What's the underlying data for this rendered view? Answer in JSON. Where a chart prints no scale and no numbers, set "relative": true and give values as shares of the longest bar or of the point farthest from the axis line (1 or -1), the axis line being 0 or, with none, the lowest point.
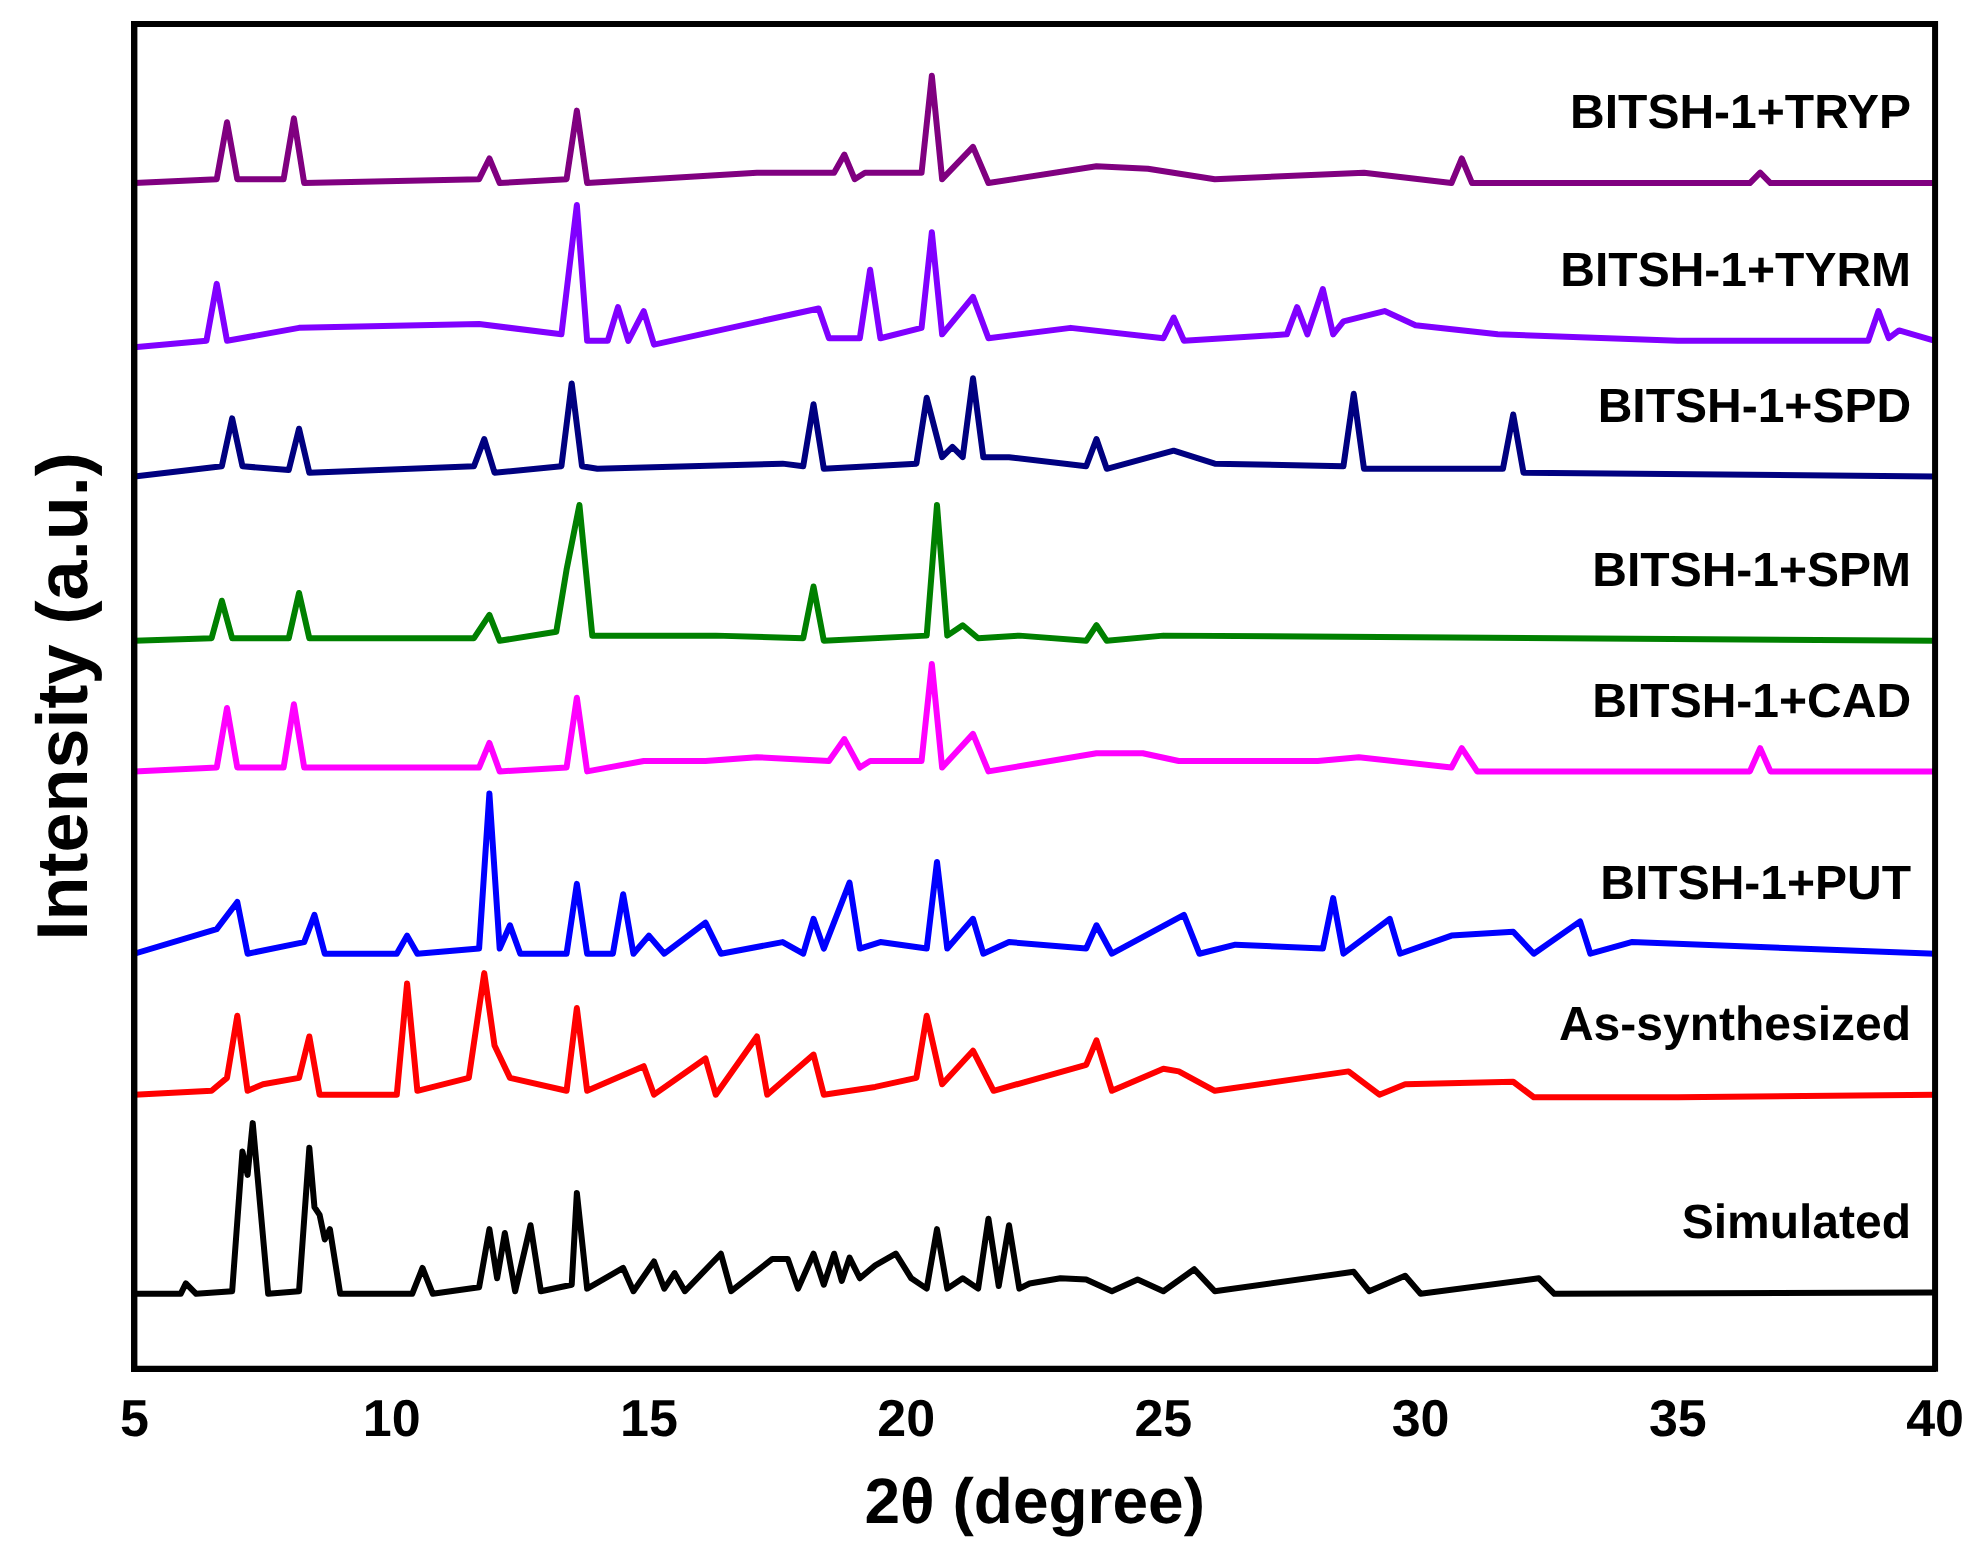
{
  "chart_data": {
    "type": "line",
    "relative": true,
    "xlabel": "2θ (degree)",
    "ylabel": "Intensity (a.u.)",
    "xlim": [
      5,
      40
    ],
    "xticks": [
      5,
      10,
      15,
      20,
      25,
      30,
      35,
      40
    ],
    "tick_labels": "x",
    "grid": false,
    "series": [
      {
        "name": "BITSH-1+TRYP",
        "color": "#800080",
        "x": [
          5,
          6.6,
          6.8,
          7.0,
          7.9,
          8.1,
          8.3,
          11.7,
          11.9,
          12.1,
          13.4,
          13.6,
          13.8,
          17.1,
          18.6,
          18.8,
          19.0,
          19.2,
          20.3,
          20.5,
          20.7,
          21.3,
          21.6,
          23.7,
          24.7,
          26.0,
          28.9,
          30.6,
          30.8,
          31.0,
          36.4,
          36.6,
          36.8,
          40
        ],
        "values": [
          0.917,
          0.92,
          0.964,
          0.92,
          0.92,
          0.967,
          0.917,
          0.92,
          0.936,
          0.917,
          0.92,
          0.973,
          0.917,
          0.925,
          0.925,
          0.939,
          0.92,
          0.925,
          0.925,
          1,
          0.92,
          0.945,
          0.917,
          0.93,
          0.928,
          0.92,
          0.925,
          0.917,
          0.936,
          0.917,
          0.917,
          0.925,
          0.917,
          0.917
        ]
      },
      {
        "name": "BITSH-1+TYRM",
        "color": "#8000ff",
        "x": [
          5,
          6.4,
          6.6,
          6.8,
          8.2,
          11.7,
          13.3,
          13.6,
          13.8,
          14.2,
          14.4,
          14.6,
          14.9,
          15.1,
          18.3,
          18.5,
          19.1,
          19.3,
          19.5,
          20.3,
          20.5,
          20.7,
          21.3,
          21.6,
          23.2,
          25.0,
          25.2,
          25.4,
          27.4,
          27.6,
          27.8,
          28.1,
          28.3,
          28.5,
          29.3,
          29.9,
          31.5,
          35,
          38.7,
          38.9,
          39.1,
          39.3,
          40
        ],
        "values": [
          0.79,
          0.795,
          0.839,
          0.795,
          0.805,
          0.808,
          0.8,
          0.9,
          0.795,
          0.795,
          0.821,
          0.795,
          0.818,
          0.792,
          0.82,
          0.797,
          0.797,
          0.85,
          0.797,
          0.805,
          0.879,
          0.8,
          0.829,
          0.797,
          0.805,
          0.797,
          0.813,
          0.795,
          0.8,
          0.821,
          0.8,
          0.835,
          0.8,
          0.81,
          0.818,
          0.807,
          0.8,
          0.795,
          0.795,
          0.818,
          0.797,
          0.803,
          0.795
        ]
      },
      {
        "name": "BITSH-1+SPD",
        "color": "#000080",
        "x": [
          5,
          6.7,
          6.9,
          7.1,
          8.0,
          8.2,
          8.4,
          11.6,
          11.8,
          12.0,
          13.3,
          13.5,
          13.7,
          14.0,
          17.6,
          18.0,
          18.2,
          18.4,
          20.2,
          20.4,
          20.7,
          20.9,
          21.1,
          21.3,
          21.5,
          22.0,
          23.5,
          23.7,
          23.9,
          25.2,
          26.0,
          28.5,
          28.7,
          28.9,
          31.6,
          31.8,
          32.0,
          40
        ],
        "values": [
          0.69,
          0.698,
          0.735,
          0.698,
          0.695,
          0.727,
          0.693,
          0.698,
          0.719,
          0.693,
          0.698,
          0.762,
          0.698,
          0.696,
          0.7,
          0.698,
          0.746,
          0.696,
          0.7,
          0.751,
          0.705,
          0.713,
          0.705,
          0.766,
          0.705,
          0.705,
          0.698,
          0.719,
          0.696,
          0.71,
          0.7,
          0.698,
          0.754,
          0.696,
          0.696,
          0.738,
          0.693,
          0.69
        ]
      },
      {
        "name": "BITSH-1+SPM",
        "color": "#008000",
        "x": [
          5,
          6.5,
          6.7,
          6.9,
          8.0,
          8.2,
          8.4,
          11.6,
          11.9,
          12.1,
          13.2,
          13.4,
          13.65,
          13.9,
          16.3,
          18.0,
          18.2,
          18.4,
          20.4,
          20.6,
          20.8,
          21.1,
          21.4,
          22.2,
          23.5,
          23.7,
          23.9,
          25.0,
          40
        ],
        "values": [
          0.563,
          0.565,
          0.594,
          0.565,
          0.565,
          0.6,
          0.565,
          0.565,
          0.583,
          0.563,
          0.57,
          0.618,
          0.668,
          0.567,
          0.567,
          0.565,
          0.605,
          0.563,
          0.567,
          0.668,
          0.567,
          0.575,
          0.565,
          0.567,
          0.563,
          0.575,
          0.563,
          0.567,
          0.563
        ]
      },
      {
        "name": "BITSH-1+CAD",
        "color": "#ff00ff",
        "x": [
          5,
          6.6,
          6.8,
          7.0,
          7.9,
          8.1,
          8.3,
          11.7,
          11.9,
          12.1,
          13.4,
          13.6,
          13.8,
          14.9,
          16.1,
          17.1,
          18.5,
          18.8,
          19.1,
          19.3,
          20.3,
          20.5,
          20.7,
          21.3,
          21.6,
          23.7,
          24.6,
          25.3,
          26.9,
          28.0,
          28.8,
          30.6,
          30.8,
          31.1,
          36.4,
          36.6,
          36.8,
          40
        ],
        "values": [
          0.462,
          0.465,
          0.511,
          0.465,
          0.465,
          0.514,
          0.465,
          0.465,
          0.484,
          0.462,
          0.465,
          0.519,
          0.462,
          0.47,
          0.47,
          0.473,
          0.47,
          0.487,
          0.465,
          0.47,
          0.47,
          0.545,
          0.465,
          0.491,
          0.462,
          0.476,
          0.476,
          0.47,
          0.47,
          0.47,
          0.473,
          0.465,
          0.48,
          0.462,
          0.462,
          0.48,
          0.462,
          0.462
        ]
      },
      {
        "name": "BITSH-1+PUT",
        "color": "#0000ff",
        "x": [
          5,
          6.6,
          7.0,
          7.2,
          8.3,
          8.5,
          8.7,
          10.1,
          10.3,
          10.5,
          11.7,
          11.9,
          12.1,
          12.3,
          12.5,
          13.4,
          13.6,
          13.8,
          14.3,
          14.5,
          14.7,
          15.0,
          15.3,
          16.1,
          16.4,
          17.6,
          18.0,
          18.2,
          18.4,
          18.9,
          19.1,
          19.5,
          20.4,
          20.6,
          20.8,
          21.3,
          21.5,
          22.0,
          23.5,
          23.7,
          24.0,
          25.4,
          25.7,
          26.4,
          28.1,
          28.3,
          28.5,
          29.4,
          29.6,
          30.6,
          31.8,
          32.2,
          33.1,
          33.3,
          34.1,
          40
        ],
        "values": [
          0.321,
          0.34,
          0.361,
          0.321,
          0.33,
          0.351,
          0.321,
          0.321,
          0.335,
          0.321,
          0.325,
          0.445,
          0.325,
          0.343,
          0.321,
          0.321,
          0.375,
          0.321,
          0.321,
          0.367,
          0.321,
          0.335,
          0.321,
          0.345,
          0.321,
          0.33,
          0.321,
          0.348,
          0.325,
          0.376,
          0.325,
          0.33,
          0.325,
          0.392,
          0.325,
          0.348,
          0.321,
          0.33,
          0.325,
          0.343,
          0.321,
          0.351,
          0.321,
          0.328,
          0.325,
          0.364,
          0.321,
          0.348,
          0.321,
          0.335,
          0.338,
          0.321,
          0.346,
          0.321,
          0.33,
          0.321
        ]
      },
      {
        "name": "As-synthesized",
        "color": "#ff0000",
        "x": [
          5,
          6.5,
          6.8,
          7.0,
          7.2,
          7.5,
          8.2,
          8.4,
          8.6,
          10.1,
          10.3,
          10.5,
          11.5,
          11.8,
          12.0,
          12.3,
          13.4,
          13.6,
          13.8,
          14.9,
          15.1,
          16.1,
          16.3,
          17.1,
          17.3,
          18.2,
          18.4,
          19.4,
          20.2,
          20.4,
          20.7,
          21.3,
          21.7,
          23.5,
          23.7,
          24.0,
          25.0,
          25.3,
          26.0,
          28.6,
          29.2,
          29.7,
          31.8,
          32.2,
          35,
          40
        ],
        "values": [
          0.212,
          0.215,
          0.225,
          0.273,
          0.215,
          0.22,
          0.225,
          0.257,
          0.212,
          0.212,
          0.298,
          0.215,
          0.225,
          0.306,
          0.25,
          0.225,
          0.215,
          0.279,
          0.215,
          0.234,
          0.212,
          0.24,
          0.212,
          0.257,
          0.212,
          0.243,
          0.212,
          0.218,
          0.225,
          0.273,
          0.22,
          0.246,
          0.215,
          0.235,
          0.254,
          0.215,
          0.232,
          0.23,
          0.215,
          0.23,
          0.212,
          0.22,
          0.222,
          0.21,
          0.21,
          0.212
        ]
      },
      {
        "name": "Simulated",
        "color": "#000000",
        "x": [
          5,
          5.9,
          6.0,
          6.2,
          6.9,
          7.1,
          7.2,
          7.3,
          7.6,
          8.2,
          8.4,
          8.5,
          8.6,
          8.7,
          8.8,
          9.0,
          10.4,
          10.6,
          10.8,
          11.7,
          11.9,
          12.05,
          12.2,
          12.4,
          12.7,
          12.9,
          13.5,
          13.6,
          13.8,
          14.5,
          14.7,
          15.1,
          15.3,
          15.5,
          15.7,
          16.4,
          16.6,
          17.4,
          17.7,
          17.9,
          18.2,
          18.4,
          18.6,
          18.75,
          18.9,
          19.1,
          19.4,
          19.8,
          20.1,
          20.4,
          20.6,
          20.8,
          21.1,
          21.4,
          21.6,
          21.8,
          22.0,
          22.2,
          22.4,
          23.0,
          23.5,
          24.0,
          24.5,
          25.0,
          25.6,
          26.0,
          28.7,
          29.0,
          29.7,
          30.0,
          32.3,
          32.6,
          40
        ],
        "values": [
          0.058,
          0.058,
          0.066,
          0.058,
          0.06,
          0.168,
          0.15,
          0.19,
          0.058,
          0.06,
          0.171,
          0.125,
          0.119,
          0.1,
          0.108,
          0.058,
          0.058,
          0.078,
          0.058,
          0.063,
          0.108,
          0.07,
          0.105,
          0.06,
          0.111,
          0.06,
          0.065,
          0.136,
          0.062,
          0.078,
          0.06,
          0.083,
          0.062,
          0.074,
          0.06,
          0.089,
          0.06,
          0.085,
          0.085,
          0.062,
          0.089,
          0.065,
          0.089,
          0.068,
          0.086,
          0.07,
          0.08,
          0.089,
          0.07,
          0.062,
          0.108,
          0.062,
          0.07,
          0.062,
          0.116,
          0.064,
          0.111,
          0.062,
          0.066,
          0.07,
          0.069,
          0.06,
          0.069,
          0.06,
          0.077,
          0.06,
          0.075,
          0.06,
          0.072,
          0.058,
          0.07,
          0.058,
          0.059
        ]
      }
    ]
  }
}
